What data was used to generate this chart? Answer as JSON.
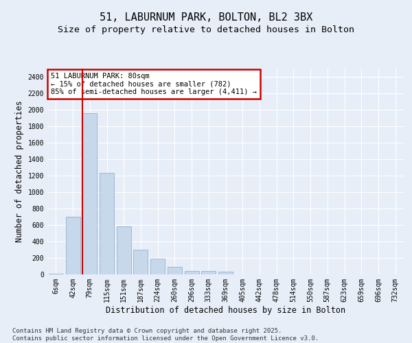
{
  "title1": "51, LABURNUM PARK, BOLTON, BL2 3BX",
  "title2": "Size of property relative to detached houses in Bolton",
  "xlabel": "Distribution of detached houses by size in Bolton",
  "ylabel": "Number of detached properties",
  "categories": [
    "6sqm",
    "42sqm",
    "79sqm",
    "115sqm",
    "151sqm",
    "187sqm",
    "224sqm",
    "260sqm",
    "296sqm",
    "333sqm",
    "369sqm",
    "405sqm",
    "442sqm",
    "478sqm",
    "514sqm",
    "550sqm",
    "587sqm",
    "623sqm",
    "659sqm",
    "696sqm",
    "732sqm"
  ],
  "values": [
    10,
    700,
    1960,
    1230,
    580,
    300,
    195,
    90,
    45,
    40,
    30,
    0,
    0,
    0,
    0,
    0,
    0,
    0,
    0,
    0,
    0
  ],
  "bar_color": "#c8d8eb",
  "bar_edge_color": "#9ab8d4",
  "highlight_index": 2,
  "highlight_color": "#cc0000",
  "annotation_title": "51 LABURNUM PARK: 80sqm",
  "annotation_line1": "← 15% of detached houses are smaller (782)",
  "annotation_line2": "85% of semi-detached houses are larger (4,411) →",
  "annotation_box_facecolor": "#ffffff",
  "annotation_box_edgecolor": "#cc0000",
  "ylim": [
    0,
    2500
  ],
  "yticks": [
    0,
    200,
    400,
    600,
    800,
    1000,
    1200,
    1400,
    1600,
    1800,
    2000,
    2200,
    2400
  ],
  "background_color": "#e8eef8",
  "grid_color": "#ffffff",
  "footer_line1": "Contains HM Land Registry data © Crown copyright and database right 2025.",
  "footer_line2": "Contains public sector information licensed under the Open Government Licence v3.0.",
  "title_fontsize": 11,
  "subtitle_fontsize": 9.5,
  "axis_label_fontsize": 8.5,
  "tick_fontsize": 7,
  "footer_fontsize": 6.5
}
